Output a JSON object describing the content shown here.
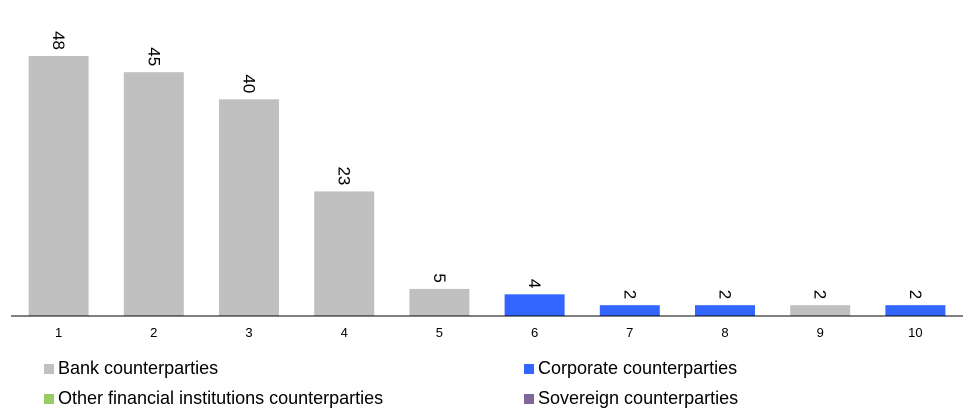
{
  "chart_data": {
    "type": "bar",
    "categories": [
      "1",
      "2",
      "3",
      "4",
      "5",
      "6",
      "7",
      "8",
      "9",
      "10"
    ],
    "values": [
      48,
      45,
      40,
      23,
      5,
      4,
      2,
      2,
      2,
      2
    ],
    "value_labels": [
      "48",
      "45",
      "40",
      "23",
      "5",
      "4",
      "2",
      "2",
      "2",
      "2"
    ],
    "bar_series": [
      "Bank counterparties",
      "Bank counterparties",
      "Bank counterparties",
      "Bank counterparties",
      "Bank counterparties",
      "Corporate counterparties",
      "Corporate counterparties",
      "Corporate counterparties",
      "Bank counterparties",
      "Corporate counterparties"
    ],
    "series": [
      {
        "name": "Bank counterparties",
        "color": "#c0c0c0"
      },
      {
        "name": "Corporate counterparties",
        "color": "#3366ff"
      },
      {
        "name": "Other financial institutions counterparties",
        "color": "#99cc66"
      },
      {
        "name": "Sovereign counterparties",
        "color": "#7f6699"
      }
    ],
    "title": "",
    "xlabel": "",
    "ylabel": "",
    "ylim": [
      0,
      50
    ],
    "grid": false,
    "legend_position": "bottom",
    "value_label_orientation": "rotated-90-clockwise"
  }
}
